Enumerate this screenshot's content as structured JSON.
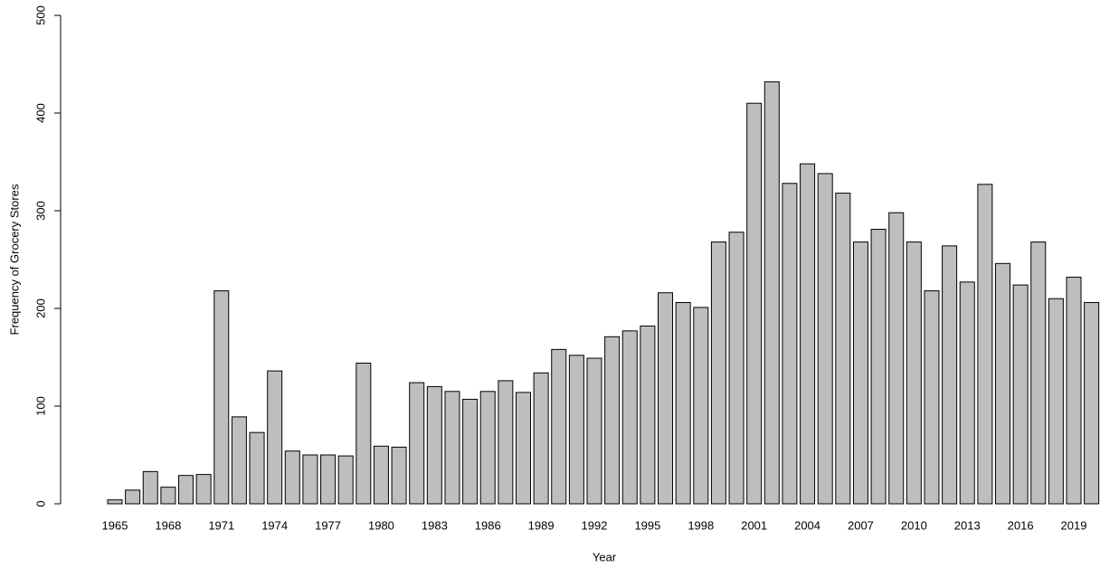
{
  "chart_data": {
    "type": "bar",
    "x_label": "Year",
    "y_label": "Frequency of Grocery Stores",
    "categories": [
      "1965",
      null,
      null,
      "1968",
      null,
      null,
      "1971",
      null,
      null,
      "1974",
      null,
      null,
      "1977",
      null,
      null,
      "1980",
      null,
      null,
      "1983",
      null,
      null,
      "1986",
      null,
      null,
      "1989",
      null,
      null,
      "1992",
      null,
      null,
      "1995",
      null,
      null,
      "1998",
      null,
      null,
      "2001",
      null,
      null,
      "2004",
      null,
      null,
      "2007",
      null,
      null,
      "2010",
      null,
      null,
      "2013",
      null,
      null,
      "2016",
      null,
      null,
      "2019",
      null
    ],
    "values": [
      4,
      14,
      33,
      17,
      29,
      30,
      218,
      89,
      73,
      136,
      54,
      50,
      50,
      49,
      144,
      59,
      58,
      124,
      120,
      115,
      107,
      115,
      126,
      114,
      134,
      158,
      152,
      149,
      171,
      177,
      182,
      216,
      206,
      201,
      268,
      278,
      410,
      432,
      328,
      348,
      338,
      318,
      268,
      281,
      298,
      268,
      218,
      264,
      227,
      327,
      246,
      224,
      268,
      210,
      232,
      206
    ],
    "color": "#bebebe",
    "ylim": [
      0,
      500
    ],
    "yticks": [
      0,
      100,
      200,
      300,
      400,
      500
    ]
  }
}
